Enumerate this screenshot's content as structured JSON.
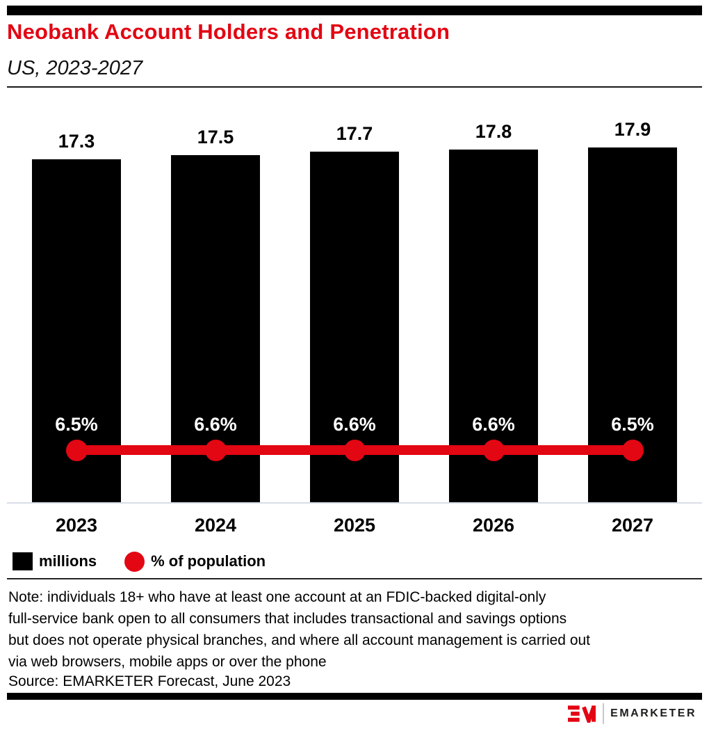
{
  "header": {
    "title": "Neobank Account Holders and Penetration",
    "subtitle": "US, 2023-2027"
  },
  "chart_data": {
    "type": "bar",
    "categories": [
      "2023",
      "2024",
      "2025",
      "2026",
      "2027"
    ],
    "series": [
      {
        "name": "millions",
        "chart_type": "bar",
        "values": [
          17.3,
          17.5,
          17.7,
          17.8,
          17.9
        ],
        "data_labels": [
          "17.3",
          "17.5",
          "17.7",
          "17.8",
          "17.9"
        ],
        "color": "#000000"
      },
      {
        "name": "% of population",
        "chart_type": "line",
        "values": [
          6.5,
          6.6,
          6.6,
          6.6,
          6.5
        ],
        "data_labels": [
          "6.5%",
          "6.6%",
          "6.6%",
          "6.6%",
          "6.5%"
        ],
        "color": "#e30613"
      }
    ],
    "title": "Neobank Account Holders and Penetration",
    "subtitle": "US, 2023-2027",
    "xlabel": "",
    "ylabel": "",
    "value_axis_visible": false,
    "grid": false,
    "legend_position": "bottom"
  },
  "legend": {
    "items": [
      {
        "label": "millions",
        "swatch": "square",
        "color": "#000000"
      },
      {
        "label": "% of population",
        "swatch": "circle",
        "color": "#e30613"
      }
    ]
  },
  "note": {
    "lines": [
      "Note: individuals 18+ who have at least one account at an FDIC-backed digital-only",
      "full-service bank open to all consumers that includes transactional and savings options",
      "but does not operate physical branches, and where all account management is carried out",
      "via web browsers, mobile apps or over the phone"
    ]
  },
  "source": {
    "text": "Source: EMARKETER Forecast, June 2023"
  },
  "footer": {
    "brand": "EMARKETER"
  },
  "colors": {
    "accent_red": "#e30613",
    "bar_black": "#000000",
    "axis_line": "#d9dde8"
  }
}
